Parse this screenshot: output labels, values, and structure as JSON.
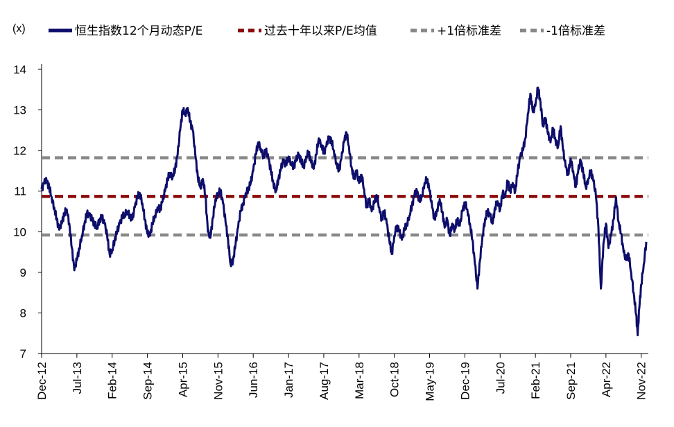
{
  "chart_data": {
    "type": "line",
    "unit_label": "(x)",
    "legend_position": "top",
    "grid": false,
    "ylim": [
      7,
      14
    ],
    "y_ticks": [
      {
        "value": 14,
        "label": "14"
      },
      {
        "value": 13,
        "label": "13"
      },
      {
        "value": 12,
        "label": "12"
      },
      {
        "value": 11,
        "label": "11"
      },
      {
        "value": 10,
        "label": "10"
      },
      {
        "value": 9,
        "label": "9"
      },
      {
        "value": 8,
        "label": "8"
      },
      {
        "value": 7,
        "label": "7"
      }
    ],
    "x_start": "Dec-12",
    "x_end": "Nov-22",
    "x_ticks": [
      {
        "label": "Dec-12",
        "month_index": 0
      },
      {
        "label": "Jul-13",
        "month_index": 7
      },
      {
        "label": "Feb-14",
        "month_index": 14
      },
      {
        "label": "Sep-14",
        "month_index": 21
      },
      {
        "label": "Apr-15",
        "month_index": 28
      },
      {
        "label": "Nov-15",
        "month_index": 35
      },
      {
        "label": "Jun-16",
        "month_index": 42
      },
      {
        "label": "Jan-17",
        "month_index": 49
      },
      {
        "label": "Aug-17",
        "month_index": 56
      },
      {
        "label": "Mar-18",
        "month_index": 63
      },
      {
        "label": "Oct-18",
        "month_index": 70
      },
      {
        "label": "May-19",
        "month_index": 77
      },
      {
        "label": "Dec-19",
        "month_index": 84
      },
      {
        "label": "Jul-20",
        "month_index": 91
      },
      {
        "label": "Feb-21",
        "month_index": 98
      },
      {
        "label": "Sep-21",
        "month_index": 105
      },
      {
        "label": "Apr-22",
        "month_index": 112
      },
      {
        "label": "Nov-22",
        "month_index": 119
      }
    ],
    "series": [
      {
        "name": "恒生指数12个月动态P/E",
        "color": "#0d0d6b",
        "style": "solid",
        "points": [
          [
            0,
            11.05
          ],
          [
            0.5,
            11.2
          ],
          [
            1,
            11.25
          ],
          [
            1.5,
            11.1
          ],
          [
            2,
            10.85
          ],
          [
            2.5,
            10.6
          ],
          [
            3,
            10.3
          ],
          [
            3.5,
            10.05
          ],
          [
            4,
            10.2
          ],
          [
            4.5,
            10.45
          ],
          [
            5,
            10.55
          ],
          [
            5.5,
            10.2
          ],
          [
            6,
            9.6
          ],
          [
            6.5,
            9.05
          ],
          [
            7,
            9.3
          ],
          [
            7.5,
            9.6
          ],
          [
            8,
            9.9
          ],
          [
            8.5,
            10.2
          ],
          [
            9,
            10.45
          ],
          [
            9.5,
            10.4
          ],
          [
            10,
            10.3
          ],
          [
            10.5,
            10.2
          ],
          [
            11,
            10.1
          ],
          [
            11.5,
            10.3
          ],
          [
            12,
            10.35
          ],
          [
            12.5,
            10.2
          ],
          [
            13,
            9.9
          ],
          [
            13.5,
            9.45
          ],
          [
            14,
            9.55
          ],
          [
            14.5,
            9.8
          ],
          [
            15,
            10.0
          ],
          [
            15.5,
            10.2
          ],
          [
            16,
            10.35
          ],
          [
            16.5,
            10.45
          ],
          [
            17,
            10.5
          ],
          [
            17.5,
            10.4
          ],
          [
            18,
            10.3
          ],
          [
            18.5,
            10.6
          ],
          [
            19,
            10.85
          ],
          [
            19.5,
            10.95
          ],
          [
            20,
            10.7
          ],
          [
            20.5,
            10.3
          ],
          [
            21,
            9.95
          ],
          [
            21.5,
            9.9
          ],
          [
            22,
            10.2
          ],
          [
            22.5,
            10.4
          ],
          [
            23,
            10.6
          ],
          [
            23.5,
            10.55
          ],
          [
            24,
            10.75
          ],
          [
            24.5,
            11.0
          ],
          [
            25,
            11.3
          ],
          [
            25.5,
            11.45
          ],
          [
            26,
            11.35
          ],
          [
            26.5,
            11.55
          ],
          [
            27,
            11.9
          ],
          [
            27.5,
            12.5
          ],
          [
            28,
            13.0
          ],
          [
            28.5,
            12.9
          ],
          [
            29,
            13.05
          ],
          [
            29.5,
            12.7
          ],
          [
            30,
            12.5
          ],
          [
            30.5,
            11.9
          ],
          [
            31,
            11.35
          ],
          [
            31.5,
            11.1
          ],
          [
            32,
            11.3
          ],
          [
            32.5,
            10.9
          ],
          [
            33,
            10.0
          ],
          [
            33.5,
            9.85
          ],
          [
            34,
            10.35
          ],
          [
            34.5,
            10.8
          ],
          [
            35,
            10.95
          ],
          [
            35.5,
            11.0
          ],
          [
            36,
            10.7
          ],
          [
            36.5,
            10.25
          ],
          [
            37,
            9.8
          ],
          [
            37.5,
            9.2
          ],
          [
            38,
            9.3
          ],
          [
            38.5,
            9.7
          ],
          [
            39,
            10.1
          ],
          [
            39.5,
            10.5
          ],
          [
            40,
            10.7
          ],
          [
            40.5,
            10.95
          ],
          [
            41,
            11.05
          ],
          [
            41.5,
            11.2
          ],
          [
            42,
            11.5
          ],
          [
            42.5,
            11.9
          ],
          [
            43,
            12.2
          ],
          [
            43.5,
            12.05
          ],
          [
            44,
            11.85
          ],
          [
            44.5,
            12.0
          ],
          [
            45,
            11.8
          ],
          [
            45.5,
            11.5
          ],
          [
            46,
            11.2
          ],
          [
            46.5,
            11.0
          ],
          [
            47,
            11.3
          ],
          [
            47.5,
            11.55
          ],
          [
            48,
            11.75
          ],
          [
            48.5,
            11.65
          ],
          [
            49,
            11.85
          ],
          [
            49.5,
            11.7
          ],
          [
            50,
            11.6
          ],
          [
            50.5,
            11.75
          ],
          [
            51,
            11.9
          ],
          [
            51.5,
            11.75
          ],
          [
            52,
            11.6
          ],
          [
            52.5,
            11.85
          ],
          [
            53,
            11.95
          ],
          [
            53.5,
            11.7
          ],
          [
            54,
            11.55
          ],
          [
            54.5,
            11.9
          ],
          [
            55,
            12.3
          ],
          [
            55.5,
            12.15
          ],
          [
            56,
            11.95
          ],
          [
            56.5,
            12.1
          ],
          [
            57,
            12.3
          ],
          [
            57.5,
            12.25
          ],
          [
            58,
            12.0
          ],
          [
            58.5,
            11.7
          ],
          [
            59,
            11.5
          ],
          [
            59.5,
            11.8
          ],
          [
            60,
            12.2
          ],
          [
            60.5,
            12.45
          ],
          [
            61,
            12.1
          ],
          [
            61.5,
            11.6
          ],
          [
            62,
            11.3
          ],
          [
            62.5,
            11.5
          ],
          [
            63,
            11.2
          ],
          [
            63.5,
            11.4
          ],
          [
            64,
            11.05
          ],
          [
            64.5,
            10.6
          ],
          [
            65,
            10.8
          ],
          [
            65.5,
            10.5
          ],
          [
            66,
            10.7
          ],
          [
            66.5,
            10.9
          ],
          [
            67,
            10.6
          ],
          [
            67.5,
            10.3
          ],
          [
            68,
            10.5
          ],
          [
            68.5,
            10.2
          ],
          [
            69,
            9.8
          ],
          [
            69.5,
            9.45
          ],
          [
            70,
            9.9
          ],
          [
            70.5,
            10.15
          ],
          [
            71,
            10.0
          ],
          [
            71.5,
            9.8
          ],
          [
            72,
            10.05
          ],
          [
            72.5,
            10.2
          ],
          [
            73,
            10.4
          ],
          [
            73.5,
            10.65
          ],
          [
            74,
            10.9
          ],
          [
            74.5,
            11.0
          ],
          [
            75,
            10.75
          ],
          [
            75.5,
            10.9
          ],
          [
            76,
            11.2
          ],
          [
            76.5,
            11.3
          ],
          [
            77,
            11.0
          ],
          [
            77.5,
            10.6
          ],
          [
            78,
            10.3
          ],
          [
            78.5,
            10.55
          ],
          [
            79,
            10.8
          ],
          [
            79.5,
            10.5
          ],
          [
            80,
            10.1
          ],
          [
            80.5,
            10.3
          ],
          [
            81,
            9.9
          ],
          [
            81.5,
            10.2
          ],
          [
            82,
            10.05
          ],
          [
            82.5,
            10.3
          ],
          [
            83,
            10.15
          ],
          [
            83.5,
            10.5
          ],
          [
            84,
            10.7
          ],
          [
            84.5,
            10.55
          ],
          [
            85,
            10.2
          ],
          [
            85.5,
            9.8
          ],
          [
            86,
            9.2
          ],
          [
            86.5,
            8.6
          ],
          [
            87,
            9.3
          ],
          [
            87.5,
            9.9
          ],
          [
            88,
            10.3
          ],
          [
            88.5,
            10.5
          ],
          [
            89,
            10.4
          ],
          [
            89.5,
            10.2
          ],
          [
            90,
            10.6
          ],
          [
            90.5,
            10.75
          ],
          [
            91,
            10.55
          ],
          [
            91.5,
            10.95
          ],
          [
            92,
            10.85
          ],
          [
            92.5,
            11.25
          ],
          [
            93,
            11.0
          ],
          [
            93.5,
            11.2
          ],
          [
            94,
            11.0
          ],
          [
            94.5,
            11.5
          ],
          [
            95,
            11.85
          ],
          [
            95.5,
            12.0
          ],
          [
            96,
            12.3
          ],
          [
            96.5,
            12.9
          ],
          [
            97,
            13.4
          ],
          [
            97.5,
            12.95
          ],
          [
            98,
            13.1
          ],
          [
            98.5,
            13.55
          ],
          [
            99,
            13.2
          ],
          [
            99.5,
            12.6
          ],
          [
            100,
            12.8
          ],
          [
            100.5,
            12.4
          ],
          [
            101,
            12.2
          ],
          [
            101.5,
            12.55
          ],
          [
            102,
            12.25
          ],
          [
            102.5,
            12.1
          ],
          [
            103,
            12.6
          ],
          [
            103.5,
            12.0
          ],
          [
            104,
            11.6
          ],
          [
            104.5,
            11.4
          ],
          [
            105,
            11.8
          ],
          [
            105.5,
            11.5
          ],
          [
            106,
            11.1
          ],
          [
            106.5,
            11.5
          ],
          [
            107,
            11.75
          ],
          [
            107.5,
            11.45
          ],
          [
            108,
            11.1
          ],
          [
            108.5,
            11.3
          ],
          [
            109,
            11.5
          ],
          [
            109.5,
            11.25
          ],
          [
            110,
            10.9
          ],
          [
            110.5,
            10.1
          ],
          [
            111,
            8.6
          ],
          [
            111.5,
            9.7
          ],
          [
            112,
            10.2
          ],
          [
            112.5,
            9.6
          ],
          [
            113,
            9.9
          ],
          [
            113.5,
            10.3
          ],
          [
            114,
            10.85
          ],
          [
            114.5,
            10.25
          ],
          [
            115,
            9.95
          ],
          [
            115.5,
            9.5
          ],
          [
            116,
            9.3
          ],
          [
            116.5,
            9.45
          ],
          [
            117,
            9.0
          ],
          [
            117.5,
            8.5
          ],
          [
            118,
            7.95
          ],
          [
            118.3,
            7.45
          ],
          [
            118.6,
            8.1
          ],
          [
            119,
            8.7
          ],
          [
            119.5,
            9.2
          ],
          [
            120,
            9.75
          ]
        ]
      },
      {
        "name": "过去十年以来P/E均值",
        "color": "#8b0a0a",
        "style": "dashed",
        "constant": 10.87
      },
      {
        "name": "+1倍标准差",
        "color": "#888888",
        "style": "dashed",
        "constant": 11.82
      },
      {
        "name": "-1倍标准差",
        "color": "#888888",
        "style": "dashed",
        "constant": 9.92
      }
    ]
  }
}
